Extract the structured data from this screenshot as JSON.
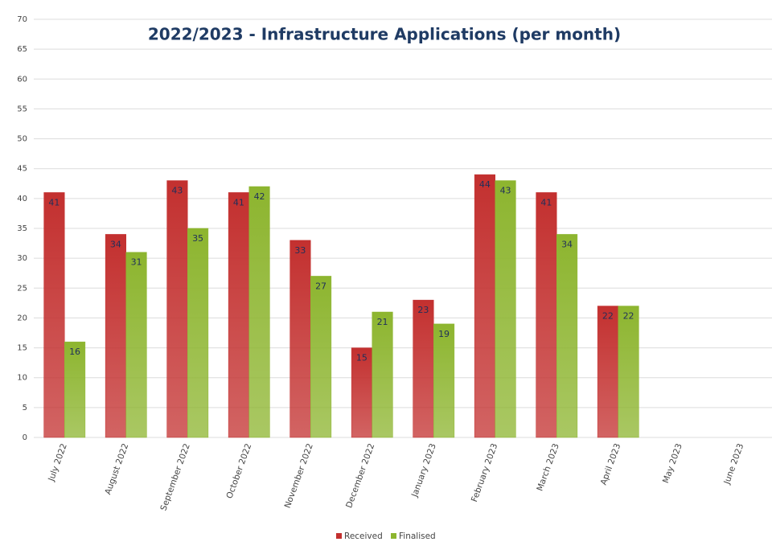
{
  "chart_data": {
    "type": "bar",
    "title": "2022/2023 - Infrastructure Applications (per month)",
    "categories": [
      "July 2022",
      "August 2022",
      "September 2022",
      "October 2022",
      "November 2022",
      "December 2022",
      "January 2023",
      "February 2023",
      "March 2023",
      "April 2023",
      "May 2023",
      "June 2023"
    ],
    "series": [
      {
        "name": "Received",
        "color": "#c3302f",
        "values": [
          41,
          34,
          43,
          41,
          33,
          15,
          23,
          44,
          41,
          22,
          null,
          null
        ]
      },
      {
        "name": "Finalised",
        "color": "#8db52f",
        "values": [
          16,
          31,
          35,
          42,
          27,
          21,
          19,
          43,
          34,
          22,
          null,
          null
        ]
      }
    ],
    "ylim": [
      0,
      70
    ],
    "yticks": [
      0,
      5,
      10,
      15,
      20,
      25,
      30,
      35,
      40,
      45,
      50,
      55,
      60,
      65,
      70
    ],
    "grid": true,
    "legend": "bottom"
  }
}
